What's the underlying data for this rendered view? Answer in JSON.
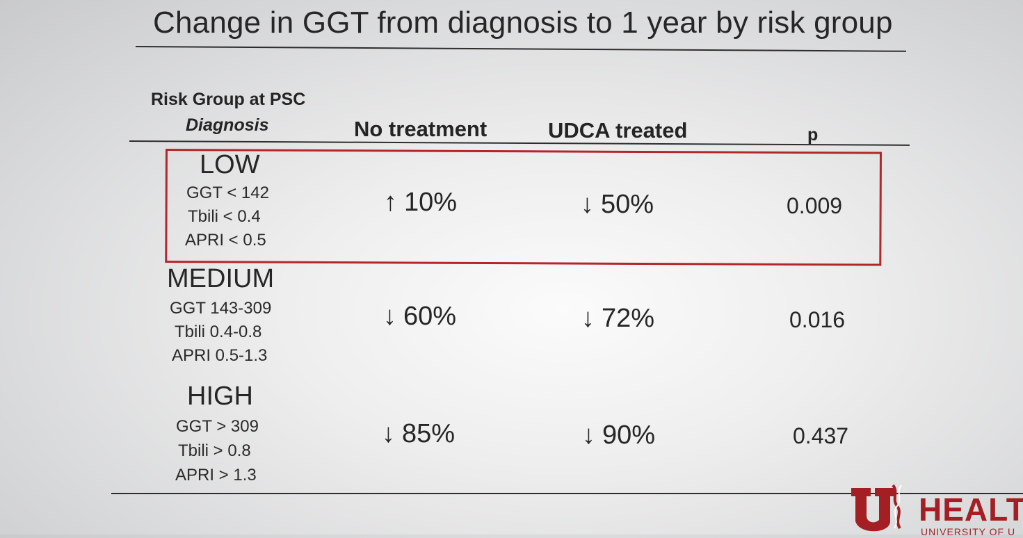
{
  "title": "Change in GGT from diagnosis to 1 year by risk group",
  "header": {
    "risk_line1": "Risk Group at PSC",
    "risk_line2": "Diagnosis",
    "no_treatment": "No treatment",
    "udca_treated": "UDCA treated",
    "p": "p"
  },
  "rows": [
    {
      "group": "LOW",
      "criteria": [
        "GGT < 142",
        "Tbili < 0.4",
        "APRI < 0.5"
      ],
      "no_treatment_arrow": "↑",
      "no_treatment": "10%",
      "udca_arrow": "↓",
      "udca": "50%",
      "p": "0.009",
      "highlighted": true
    },
    {
      "group": "MEDIUM",
      "criteria": [
        "GGT 143-309",
        "Tbili 0.4-0.8",
        "APRI 0.5-1.3"
      ],
      "no_treatment_arrow": "↓",
      "no_treatment": "60%",
      "udca_arrow": "↓",
      "udca": "72%",
      "p": "0.016",
      "highlighted": false
    },
    {
      "group": "HIGH",
      "criteria": [
        "GGT > 309",
        "Tbili > 0.8",
        "APRI > 1.3"
      ],
      "no_treatment_arrow": "↓",
      "no_treatment": "85%",
      "udca_arrow": "↓",
      "udca": "90%",
      "p": "0.437",
      "highlighted": false
    }
  ],
  "colors": {
    "highlight_border": "#b3262b",
    "brand_red": "#a31f24"
  },
  "logo": {
    "icon": "university-u-icon",
    "word": "HEALT",
    "subtext": "UNIVERSITY OF U"
  }
}
